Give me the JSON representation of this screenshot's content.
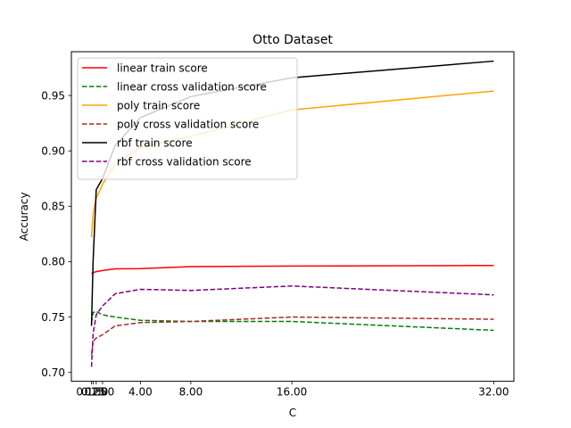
{
  "chart_data": {
    "type": "line",
    "title": "Otto Dataset",
    "xlabel": "C",
    "ylabel": "Accuracy",
    "x": [
      0.125,
      0.25,
      0.5,
      1.0,
      2.0,
      4.0,
      8.0,
      16.0,
      32.0
    ],
    "xticks": [
      0.125,
      0.25,
      0.5,
      1.0,
      4.0,
      8.0,
      16.0,
      32.0
    ],
    "xtick_labels": [
      "0.125",
      "0.25",
      "0.50",
      "1.00",
      "4.00",
      "8.00",
      "16.00",
      "32.00"
    ],
    "xlim": [
      -1.47,
      33.6
    ],
    "yticks": [
      0.7,
      0.75,
      0.8,
      0.85,
      0.9,
      0.95
    ],
    "ytick_labels": [
      "0.70",
      "0.75",
      "0.80",
      "0.85",
      "0.90",
      "0.95"
    ],
    "ylim": [
      0.692,
      0.9895
    ],
    "grid": false,
    "legend_position": "upper-left",
    "series": [
      {
        "name": "linear train score",
        "color": "#ff0000",
        "dash": "solid",
        "values": [
          0.789,
          0.79,
          0.791,
          0.792,
          0.7935,
          0.7937,
          0.7955,
          0.796,
          0.7965
        ]
      },
      {
        "name": "linear cross validation score",
        "color": "#008000",
        "dash": "dashed",
        "values": [
          0.745,
          0.754,
          0.755,
          0.752,
          0.75,
          0.747,
          0.746,
          0.746,
          0.738
        ]
      },
      {
        "name": "poly train score",
        "color": "#ffa500",
        "dash": "solid",
        "values": [
          0.822,
          0.843,
          0.857,
          0.87,
          0.888,
          0.903,
          0.913,
          0.937,
          0.954
        ]
      },
      {
        "name": "poly cross validation score",
        "color": "#a52a2a",
        "dash": "dashed",
        "values": [
          0.716,
          0.728,
          0.731,
          0.734,
          0.742,
          0.745,
          0.746,
          0.75,
          0.748
        ]
      },
      {
        "name": "rbf train score",
        "color": "#000000",
        "dash": "solid",
        "values": [
          0.742,
          0.8,
          0.865,
          0.875,
          0.905,
          0.93,
          0.949,
          0.966,
          0.981
        ]
      },
      {
        "name": "rbf cross validation score",
        "color": "#800080",
        "dash": "dashed",
        "values": [
          0.705,
          0.735,
          0.752,
          0.76,
          0.771,
          0.775,
          0.774,
          0.778,
          0.77
        ]
      }
    ]
  }
}
